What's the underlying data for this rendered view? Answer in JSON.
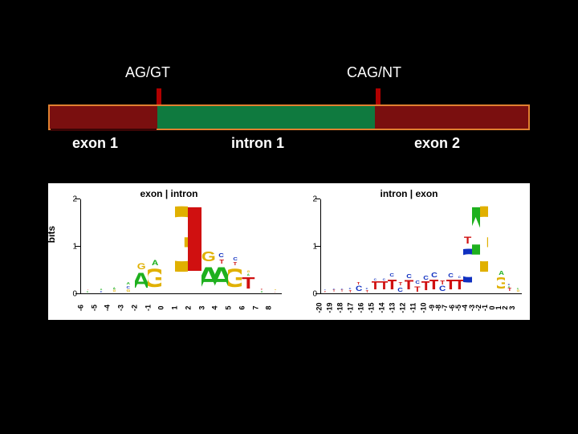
{
  "top_labels": [
    {
      "text": "AG/GT",
      "left_pct": 16
    },
    {
      "text": "CAG/NT",
      "left_pct": 62
    }
  ],
  "ticks": [
    {
      "left_pct": 22.5
    },
    {
      "left_pct": 68
    }
  ],
  "segments": [
    {
      "kind": "exon",
      "width_pct": 22.5,
      "shadow": true
    },
    {
      "kind": "intron",
      "width_pct": 45.5
    },
    {
      "kind": "exon",
      "width_pct": 32
    }
  ],
  "bottom_labels": [
    {
      "text": "exon 1",
      "left_pct": 5
    },
    {
      "text": "intron 1",
      "left_pct": 38
    },
    {
      "text": "exon 2",
      "left_pct": 76
    }
  ],
  "colors": {
    "exon_bg": "#7a0f0f",
    "intron_bg": "#0f7a3f",
    "border": "#e08030",
    "tick": "#b00000",
    "text": "#ffffff",
    "A": "#1eb01e",
    "C": "#1030c0",
    "G": "#e0b000",
    "T": "#d01010"
  },
  "bits_max": 2,
  "y_ticks": [
    0,
    1,
    2
  ],
  "y_label": "bits",
  "logo_left": {
    "title": "exon | intron",
    "positions": [
      -6,
      -5,
      -4,
      -3,
      -2,
      -1,
      0,
      1,
      2,
      3,
      4,
      5,
      6,
      7,
      8
    ],
    "stacks": [
      [
        [
          "A",
          0.04
        ],
        [
          "T",
          0.04
        ]
      ],
      [
        [
          "C",
          0.05
        ],
        [
          "A",
          0.05
        ]
      ],
      [
        [
          "G",
          0.06
        ],
        [
          "A",
          0.06
        ]
      ],
      [
        [
          "G",
          0.08
        ],
        [
          "C",
          0.08
        ],
        [
          "A",
          0.08
        ]
      ],
      [
        [
          "A",
          0.45
        ],
        [
          "G",
          0.18
        ]
      ],
      [
        [
          "G",
          0.55
        ],
        [
          "A",
          0.15
        ]
      ],
      [],
      [
        [
          "G",
          1.95
        ]
      ],
      [
        [
          "T",
          1.95
        ]
      ],
      [
        [
          "A",
          0.6
        ],
        [
          "G",
          0.3
        ]
      ],
      [
        [
          "A",
          0.6
        ],
        [
          "T",
          0.12
        ],
        [
          "C",
          0.12
        ]
      ],
      [
        [
          "G",
          0.55
        ],
        [
          "T",
          0.1
        ],
        [
          "C",
          0.1
        ]
      ],
      [
        [
          "T",
          0.35
        ],
        [
          "A",
          0.06
        ],
        [
          "G",
          0.06
        ]
      ],
      [
        [
          "A",
          0.05
        ],
        [
          "T",
          0.05
        ]
      ],
      [
        [
          "T",
          0.04
        ],
        [
          "G",
          0.04
        ]
      ]
    ]
  },
  "logo_right": {
    "title": "intron | exon",
    "positions": [
      -20,
      -19,
      -18,
      -17,
      -16,
      -15,
      -14,
      -13,
      -12,
      -11,
      -10,
      -9,
      -8,
      -7,
      -6,
      -5,
      -4,
      -3,
      -2,
      -1,
      0,
      1,
      2,
      3
    ],
    "stacks": [
      [
        [
          "T",
          0.05
        ],
        [
          "C",
          0.04
        ]
      ],
      [
        [
          "T",
          0.06
        ],
        [
          "C",
          0.05
        ]
      ],
      [
        [
          "T",
          0.06
        ],
        [
          "C",
          0.05
        ]
      ],
      [
        [
          "T",
          0.07
        ],
        [
          "C",
          0.05
        ]
      ],
      [
        [
          "C",
          0.15
        ],
        [
          "T",
          0.08
        ]
      ],
      [
        [
          "T",
          0.07
        ],
        [
          "C",
          0.05
        ]
      ],
      [
        [
          "T",
          0.25
        ],
        [
          "C",
          0.06
        ]
      ],
      [
        [
          "T",
          0.25
        ],
        [
          "C",
          0.06
        ]
      ],
      [
        [
          "T",
          0.3
        ],
        [
          "C",
          0.1
        ]
      ],
      [
        [
          "C",
          0.12
        ],
        [
          "T",
          0.1
        ]
      ],
      [
        [
          "T",
          0.28
        ],
        [
          "C",
          0.12
        ]
      ],
      [
        [
          "T",
          0.16
        ],
        [
          "C",
          0.1
        ]
      ],
      [
        [
          "T",
          0.26
        ],
        [
          "C",
          0.12
        ]
      ],
      [
        [
          "T",
          0.3
        ],
        [
          "C",
          0.14
        ]
      ],
      [
        [
          "C",
          0.15
        ],
        [
          "T",
          0.12
        ]
      ],
      [
        [
          "T",
          0.3
        ],
        [
          "C",
          0.12
        ]
      ],
      [
        [
          "T",
          0.3
        ],
        [
          "C",
          0.06
        ]
      ],
      [
        [
          "C",
          1.0
        ],
        [
          "T",
          0.2
        ]
      ],
      [
        [
          "A",
          1.95
        ]
      ],
      [
        [
          "G",
          1.95
        ]
      ],
      [],
      [
        [
          "G",
          0.35
        ],
        [
          "A",
          0.12
        ]
      ],
      [
        [
          "T",
          0.1
        ],
        [
          "A",
          0.05
        ],
        [
          "C",
          0.05
        ]
      ],
      [
        [
          "G",
          0.06
        ],
        [
          "A",
          0.04
        ]
      ]
    ]
  }
}
